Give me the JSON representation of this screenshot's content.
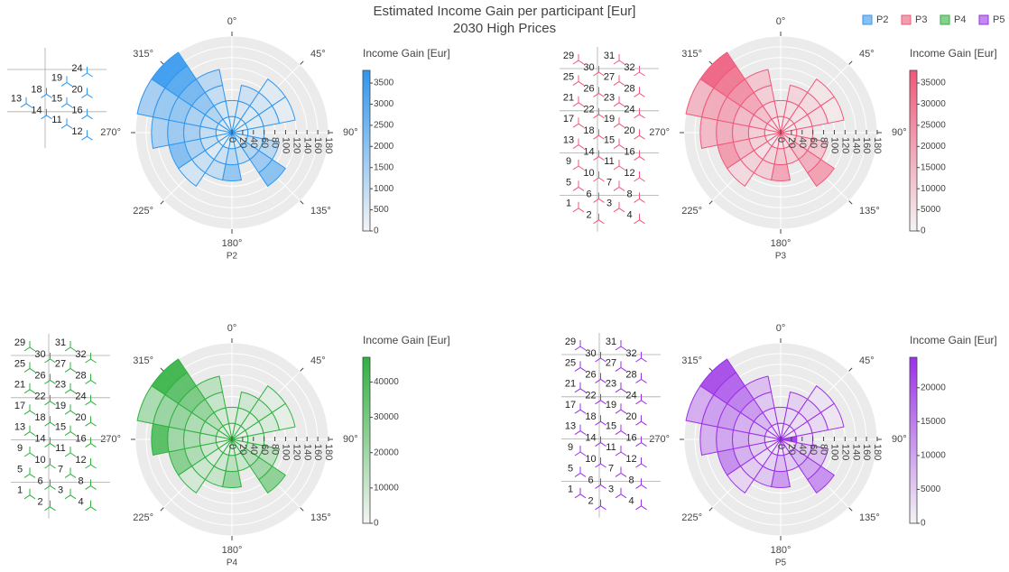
{
  "title": "Estimated Income Gain per participant [Eur]",
  "subtitle": "2030 High Prices",
  "low_color": "#f4f4f4",
  "chart_data": [
    {
      "type": "barpolar",
      "name": "P2",
      "color": "#2e96ef",
      "colorbar_title": "Income Gain [Eur]",
      "clim": [
        0,
        3800
      ],
      "cticks": [
        0,
        500,
        1000,
        1500,
        2000,
        2500,
        3000,
        3500
      ],
      "rlim": [
        0,
        180
      ],
      "rticks": [
        0,
        20,
        40,
        60,
        80,
        100,
        120,
        140,
        160,
        180
      ],
      "rbins": [
        0,
        30,
        60,
        90,
        120,
        150,
        180
      ],
      "angular_ticks": [
        {
          "value": 0,
          "label": "0°"
        },
        {
          "value": 45,
          "label": "45°"
        },
        {
          "value": 90,
          "label": "90°"
        },
        {
          "value": 135,
          "label": "135°"
        },
        {
          "value": 180,
          "label": "180°"
        },
        {
          "value": 225,
          "label": "225°"
        },
        {
          "value": 270,
          "label": "270°"
        },
        {
          "value": 315,
          "label": "315°"
        }
      ],
      "directions": [
        0,
        22.5,
        45,
        67.5,
        90,
        112.5,
        135,
        157.5,
        180,
        202.5,
        225,
        247.5,
        270,
        292.5,
        315,
        337.5
      ],
      "values": [
        [
          300,
          500
        ],
        [
          400,
          600,
          800
        ],
        [
          300,
          500,
          700,
          400
        ],
        [
          200,
          400,
          600,
          300
        ],
        [
          300,
          500
        ],
        [
          400,
          900,
          1200
        ],
        [
          600,
          1400,
          1800,
          2200
        ],
        [
          500,
          900
        ],
        [
          400,
          1200,
          2000
        ],
        [
          300,
          800,
          1000
        ],
        [
          200,
          500,
          900,
          700
        ],
        [
          300,
          900,
          1500,
          2300
        ],
        [
          400,
          1000,
          1600,
          1800,
          1500
        ],
        [
          500,
          1100,
          1500,
          2000,
          1900,
          1600
        ],
        [
          600,
          1400,
          2000,
          2600,
          3200,
          3700
        ],
        [
          300,
          700,
          1000,
          1200
        ]
      ],
      "turbines": [
        24,
        19,
        20,
        18,
        13,
        15,
        16,
        14,
        11,
        12
      ]
    },
    {
      "type": "barpolar",
      "name": "P3",
      "color": "#f0587a",
      "colorbar_title": "Income Gain [Eur]",
      "clim": [
        0,
        38000
      ],
      "cticks": [
        0,
        5000,
        10000,
        15000,
        20000,
        25000,
        30000,
        35000
      ],
      "rlim": [
        0,
        180
      ],
      "rticks": [
        0,
        20,
        40,
        60,
        80,
        100,
        120,
        140,
        160,
        180
      ],
      "rbins": [
        0,
        30,
        60,
        90,
        120,
        150,
        180
      ],
      "angular_ticks": [
        {
          "value": 0,
          "label": "0°"
        },
        {
          "value": 45,
          "label": "45°"
        },
        {
          "value": 90,
          "label": "90°"
        },
        {
          "value": 135,
          "label": "135°"
        },
        {
          "value": 180,
          "label": "180°"
        },
        {
          "value": 225,
          "label": "225°"
        },
        {
          "value": 270,
          "label": "270°"
        },
        {
          "value": 315,
          "label": "315°"
        }
      ],
      "directions": [
        0,
        22.5,
        45,
        67.5,
        90,
        112.5,
        135,
        157.5,
        180,
        202.5,
        225,
        247.5,
        270,
        292.5,
        315,
        337.5
      ],
      "values": [
        [
          3000,
          5000
        ],
        [
          4000,
          6000,
          8000
        ],
        [
          3000,
          5000,
          7000,
          4000
        ],
        [
          2000,
          4000,
          6000,
          3000
        ],
        [
          3000,
          5000
        ],
        [
          4000,
          9000,
          12000
        ],
        [
          6000,
          14000,
          18000,
          22000
        ],
        [
          5000,
          9000
        ],
        [
          4000,
          12000,
          20000
        ],
        [
          3000,
          8000,
          10000
        ],
        [
          2000,
          5000,
          9000,
          7000
        ],
        [
          3000,
          9000,
          15000,
          23000
        ],
        [
          4000,
          10000,
          16000,
          18000,
          15000
        ],
        [
          5000,
          11000,
          15000,
          20000,
          19000,
          16000
        ],
        [
          6000,
          14000,
          20000,
          26000,
          32000,
          37000
        ],
        [
          3000,
          7000,
          10000,
          12000
        ]
      ],
      "turbines": [
        29,
        30,
        31,
        32,
        25,
        26,
        27,
        28,
        21,
        22,
        23,
        24,
        17,
        18,
        19,
        20,
        13,
        14,
        15,
        16,
        9,
        10,
        11,
        12,
        5,
        6,
        7,
        8,
        1,
        2,
        3,
        4
      ]
    },
    {
      "type": "barpolar",
      "name": "P4",
      "color": "#2fb13f",
      "colorbar_title": "Income Gain [Eur]",
      "clim": [
        0,
        47000
      ],
      "cticks": [
        0,
        10000,
        20000,
        30000,
        40000
      ],
      "rlim": [
        0,
        180
      ],
      "rticks": [
        0,
        20,
        40,
        60,
        80,
        100,
        120,
        140,
        160,
        180
      ],
      "rbins": [
        0,
        30,
        60,
        90,
        120,
        150,
        180
      ],
      "angular_ticks": [
        {
          "value": 0,
          "label": "0°"
        },
        {
          "value": 45,
          "label": "45°"
        },
        {
          "value": 90,
          "label": "90°"
        },
        {
          "value": 135,
          "label": "135°"
        },
        {
          "value": 180,
          "label": "180°"
        },
        {
          "value": 225,
          "label": "225°"
        },
        {
          "value": 270,
          "label": "270°"
        },
        {
          "value": 315,
          "label": "315°"
        }
      ],
      "directions": [
        0,
        22.5,
        45,
        67.5,
        90,
        112.5,
        135,
        157.5,
        180,
        202.5,
        225,
        247.5,
        270,
        292.5,
        315,
        337.5
      ],
      "values": [
        [
          3600,
          6000
        ],
        [
          4800,
          7200,
          9600
        ],
        [
          3600,
          6000,
          8400,
          4800
        ],
        [
          2400,
          4800,
          7200,
          3600
        ],
        [
          3600,
          6000
        ],
        [
          4800,
          10800,
          14400
        ],
        [
          7200,
          16800,
          21600,
          26400
        ],
        [
          6000,
          10800
        ],
        [
          4800,
          14400,
          24000
        ],
        [
          3600,
          9600,
          12000
        ],
        [
          2400,
          6000,
          10800,
          8400
        ],
        [
          3600,
          10800,
          18000,
          27600
        ],
        [
          4800,
          12000,
          19200,
          21600,
          40000
        ],
        [
          6000,
          13200,
          18000,
          24000,
          22800,
          19200
        ],
        [
          7200,
          16800,
          24000,
          31200,
          38400,
          46000
        ],
        [
          3600,
          8400,
          12000,
          14400
        ]
      ],
      "turbines": [
        29,
        30,
        31,
        32,
        25,
        26,
        27,
        28,
        21,
        22,
        23,
        24,
        17,
        18,
        19,
        20,
        13,
        14,
        15,
        16,
        9,
        10,
        11,
        12,
        5,
        6,
        7,
        8,
        1,
        2,
        3,
        4
      ]
    },
    {
      "type": "barpolar",
      "name": "P5",
      "color": "#9b30e8",
      "colorbar_title": "Income Gain [Eur]",
      "clim": [
        0,
        24500
      ],
      "cticks": [
        0,
        5000,
        10000,
        15000,
        20000
      ],
      "rlim": [
        0,
        180
      ],
      "rticks": [
        0,
        20,
        40,
        60,
        80,
        100,
        120,
        140,
        160,
        180
      ],
      "rbins": [
        0,
        30,
        60,
        90,
        120,
        150,
        180
      ],
      "angular_ticks": [
        {
          "value": 0,
          "label": "0°"
        },
        {
          "value": 45,
          "label": "45°"
        },
        {
          "value": 90,
          "label": "90°"
        },
        {
          "value": 135,
          "label": "135°"
        },
        {
          "value": 180,
          "label": "180°"
        },
        {
          "value": 225,
          "label": "225°"
        },
        {
          "value": 270,
          "label": "270°"
        },
        {
          "value": 315,
          "label": "315°"
        }
      ],
      "directions": [
        0,
        22.5,
        45,
        67.5,
        90,
        112.5,
        135,
        157.5,
        180,
        202.5,
        225,
        247.5,
        270,
        292.5,
        315,
        337.5
      ],
      "values": [
        [
          1800,
          3000
        ],
        [
          2400,
          3600,
          4800
        ],
        [
          1800,
          3000,
          4200,
          2400
        ],
        [
          1200,
          2400,
          3600,
          1800
        ],
        [
          24000,
          3000
        ],
        [
          2400,
          5400,
          7200
        ],
        [
          3600,
          8400,
          10800,
          13200
        ],
        [
          3000,
          5400
        ],
        [
          2400,
          7200,
          12000
        ],
        [
          1800,
          4800,
          6000
        ],
        [
          1200,
          3000,
          5400,
          4200
        ],
        [
          1800,
          5400,
          9000,
          13800
        ],
        [
          2400,
          6000,
          9600,
          10800,
          9000
        ],
        [
          3000,
          6600,
          9000,
          12000,
          11400,
          9600
        ],
        [
          3600,
          8400,
          12000,
          15600,
          19200,
          22200
        ],
        [
          1800,
          4200,
          6000,
          7200
        ]
      ],
      "turbines": [
        29,
        30,
        31,
        32,
        25,
        26,
        27,
        28,
        21,
        22,
        23,
        24,
        17,
        18,
        19,
        20,
        13,
        14,
        15,
        16,
        9,
        10,
        11,
        12,
        5,
        6,
        7,
        8,
        1,
        2,
        3,
        4
      ]
    }
  ]
}
